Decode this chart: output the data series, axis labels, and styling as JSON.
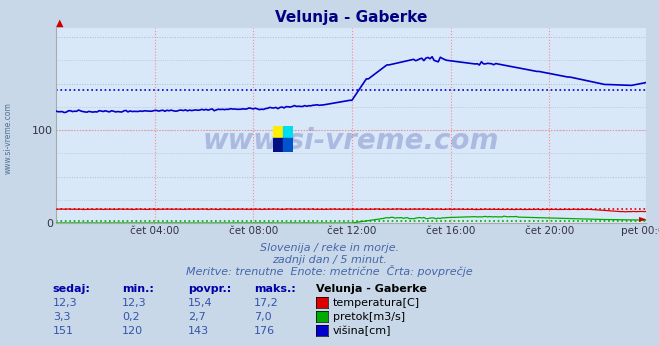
{
  "title": "Velunja - Gaberke",
  "title_color": "#000080",
  "bg_color": "#c8d8e8",
  "plot_bg_color": "#d8e8f8",
  "grid_color_red": "#ff8888",
  "grid_color_gray": "#aabbcc",
  "ylim": [
    0,
    210
  ],
  "yticks": [
    0,
    100
  ],
  "xlabel_times": [
    "čet 04:00",
    "čet 08:00",
    "čet 12:00",
    "čet 16:00",
    "čet 20:00",
    "pet 00:00"
  ],
  "xtick_positions": [
    48,
    96,
    144,
    192,
    240,
    287
  ],
  "n_points": 288,
  "temp_color": "#dd0000",
  "pretok_color": "#00aa00",
  "visina_color": "#0000cc",
  "temp_avg": 15.4,
  "pretok_avg": 2.7,
  "visina_avg": 143,
  "subtitle1": "Slovenija / reke in morje.",
  "subtitle2": "zadnji dan / 5 minut.",
  "subtitle3": "Meritve: trenutne  Enote: metrične  Črta: povprečje",
  "legend_title": "Velunja - Gaberke",
  "table_headers": [
    "sedaj:",
    "min.:",
    "povpr.:",
    "maks.:"
  ],
  "temp_row": [
    "12,3",
    "12,3",
    "15,4",
    "17,2"
  ],
  "pretok_row": [
    "3,3",
    "0,2",
    "2,7",
    "7,0"
  ],
  "visina_row": [
    "151",
    "120",
    "143",
    "176"
  ],
  "watermark_text": "www.si-vreme.com",
  "watermark_color": "#000088",
  "left_label": "www.si-vreme.com",
  "subtitle_color": "#4466aa",
  "table_num_color": "#3355aa",
  "table_header_color": "#0000aa"
}
